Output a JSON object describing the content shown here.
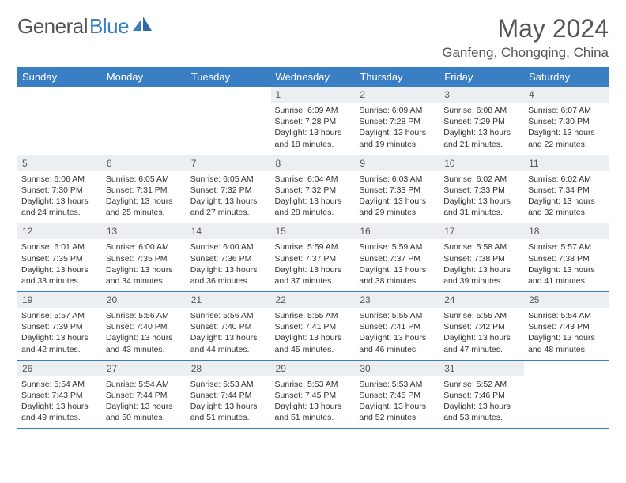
{
  "logo": {
    "part1": "General",
    "part2": "Blue"
  },
  "title": "May 2024",
  "location": "Ganfeng, Chongqing, China",
  "colors": {
    "accent": "#3a7fc4",
    "dayHeaderBg": "#eceff1",
    "text": "#333333",
    "muted": "#555555"
  },
  "weekdays": [
    "Sunday",
    "Monday",
    "Tuesday",
    "Wednesday",
    "Thursday",
    "Friday",
    "Saturday"
  ],
  "weeks": [
    [
      {
        "n": "",
        "l": []
      },
      {
        "n": "",
        "l": []
      },
      {
        "n": "",
        "l": []
      },
      {
        "n": "1",
        "l": [
          "Sunrise: 6:09 AM",
          "Sunset: 7:28 PM",
          "Daylight: 13 hours",
          "and 18 minutes."
        ]
      },
      {
        "n": "2",
        "l": [
          "Sunrise: 6:09 AM",
          "Sunset: 7:28 PM",
          "Daylight: 13 hours",
          "and 19 minutes."
        ]
      },
      {
        "n": "3",
        "l": [
          "Sunrise: 6:08 AM",
          "Sunset: 7:29 PM",
          "Daylight: 13 hours",
          "and 21 minutes."
        ]
      },
      {
        "n": "4",
        "l": [
          "Sunrise: 6:07 AM",
          "Sunset: 7:30 PM",
          "Daylight: 13 hours",
          "and 22 minutes."
        ]
      }
    ],
    [
      {
        "n": "5",
        "l": [
          "Sunrise: 6:06 AM",
          "Sunset: 7:30 PM",
          "Daylight: 13 hours",
          "and 24 minutes."
        ]
      },
      {
        "n": "6",
        "l": [
          "Sunrise: 6:05 AM",
          "Sunset: 7:31 PM",
          "Daylight: 13 hours",
          "and 25 minutes."
        ]
      },
      {
        "n": "7",
        "l": [
          "Sunrise: 6:05 AM",
          "Sunset: 7:32 PM",
          "Daylight: 13 hours",
          "and 27 minutes."
        ]
      },
      {
        "n": "8",
        "l": [
          "Sunrise: 6:04 AM",
          "Sunset: 7:32 PM",
          "Daylight: 13 hours",
          "and 28 minutes."
        ]
      },
      {
        "n": "9",
        "l": [
          "Sunrise: 6:03 AM",
          "Sunset: 7:33 PM",
          "Daylight: 13 hours",
          "and 29 minutes."
        ]
      },
      {
        "n": "10",
        "l": [
          "Sunrise: 6:02 AM",
          "Sunset: 7:33 PM",
          "Daylight: 13 hours",
          "and 31 minutes."
        ]
      },
      {
        "n": "11",
        "l": [
          "Sunrise: 6:02 AM",
          "Sunset: 7:34 PM",
          "Daylight: 13 hours",
          "and 32 minutes."
        ]
      }
    ],
    [
      {
        "n": "12",
        "l": [
          "Sunrise: 6:01 AM",
          "Sunset: 7:35 PM",
          "Daylight: 13 hours",
          "and 33 minutes."
        ]
      },
      {
        "n": "13",
        "l": [
          "Sunrise: 6:00 AM",
          "Sunset: 7:35 PM",
          "Daylight: 13 hours",
          "and 34 minutes."
        ]
      },
      {
        "n": "14",
        "l": [
          "Sunrise: 6:00 AM",
          "Sunset: 7:36 PM",
          "Daylight: 13 hours",
          "and 36 minutes."
        ]
      },
      {
        "n": "15",
        "l": [
          "Sunrise: 5:59 AM",
          "Sunset: 7:37 PM",
          "Daylight: 13 hours",
          "and 37 minutes."
        ]
      },
      {
        "n": "16",
        "l": [
          "Sunrise: 5:59 AM",
          "Sunset: 7:37 PM",
          "Daylight: 13 hours",
          "and 38 minutes."
        ]
      },
      {
        "n": "17",
        "l": [
          "Sunrise: 5:58 AM",
          "Sunset: 7:38 PM",
          "Daylight: 13 hours",
          "and 39 minutes."
        ]
      },
      {
        "n": "18",
        "l": [
          "Sunrise: 5:57 AM",
          "Sunset: 7:38 PM",
          "Daylight: 13 hours",
          "and 41 minutes."
        ]
      }
    ],
    [
      {
        "n": "19",
        "l": [
          "Sunrise: 5:57 AM",
          "Sunset: 7:39 PM",
          "Daylight: 13 hours",
          "and 42 minutes."
        ]
      },
      {
        "n": "20",
        "l": [
          "Sunrise: 5:56 AM",
          "Sunset: 7:40 PM",
          "Daylight: 13 hours",
          "and 43 minutes."
        ]
      },
      {
        "n": "21",
        "l": [
          "Sunrise: 5:56 AM",
          "Sunset: 7:40 PM",
          "Daylight: 13 hours",
          "and 44 minutes."
        ]
      },
      {
        "n": "22",
        "l": [
          "Sunrise: 5:55 AM",
          "Sunset: 7:41 PM",
          "Daylight: 13 hours",
          "and 45 minutes."
        ]
      },
      {
        "n": "23",
        "l": [
          "Sunrise: 5:55 AM",
          "Sunset: 7:41 PM",
          "Daylight: 13 hours",
          "and 46 minutes."
        ]
      },
      {
        "n": "24",
        "l": [
          "Sunrise: 5:55 AM",
          "Sunset: 7:42 PM",
          "Daylight: 13 hours",
          "and 47 minutes."
        ]
      },
      {
        "n": "25",
        "l": [
          "Sunrise: 5:54 AM",
          "Sunset: 7:43 PM",
          "Daylight: 13 hours",
          "and 48 minutes."
        ]
      }
    ],
    [
      {
        "n": "26",
        "l": [
          "Sunrise: 5:54 AM",
          "Sunset: 7:43 PM",
          "Daylight: 13 hours",
          "and 49 minutes."
        ]
      },
      {
        "n": "27",
        "l": [
          "Sunrise: 5:54 AM",
          "Sunset: 7:44 PM",
          "Daylight: 13 hours",
          "and 50 minutes."
        ]
      },
      {
        "n": "28",
        "l": [
          "Sunrise: 5:53 AM",
          "Sunset: 7:44 PM",
          "Daylight: 13 hours",
          "and 51 minutes."
        ]
      },
      {
        "n": "29",
        "l": [
          "Sunrise: 5:53 AM",
          "Sunset: 7:45 PM",
          "Daylight: 13 hours",
          "and 51 minutes."
        ]
      },
      {
        "n": "30",
        "l": [
          "Sunrise: 5:53 AM",
          "Sunset: 7:45 PM",
          "Daylight: 13 hours",
          "and 52 minutes."
        ]
      },
      {
        "n": "31",
        "l": [
          "Sunrise: 5:52 AM",
          "Sunset: 7:46 PM",
          "Daylight: 13 hours",
          "and 53 minutes."
        ]
      },
      {
        "n": "",
        "l": []
      }
    ]
  ]
}
